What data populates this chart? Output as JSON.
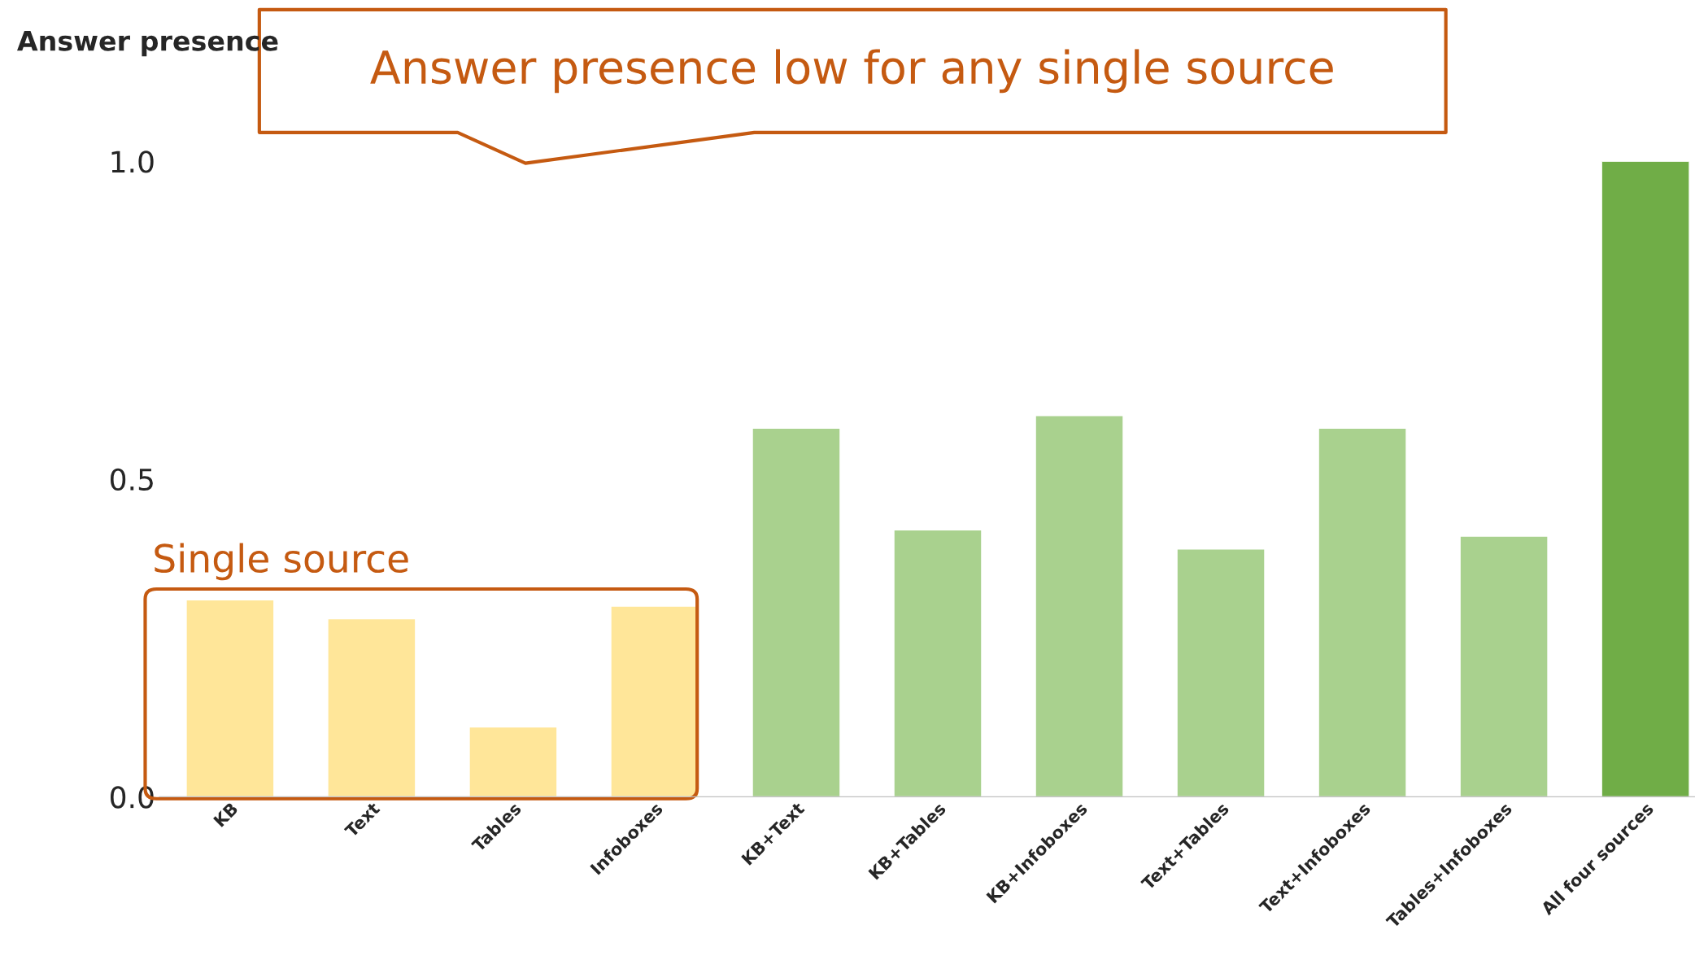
{
  "chart_data": {
    "type": "bar",
    "ylabel": "Answer presence",
    "categories": [
      "KB",
      "Text",
      "Tables",
      "Infoboxes",
      "KB+Text",
      "KB+Tables",
      "KB+Infoboxes",
      "Text+Tables",
      "Text+Infoboxes",
      "Tables+Infoboxes",
      "All four sources"
    ],
    "values": [
      0.31,
      0.28,
      0.11,
      0.3,
      0.58,
      0.42,
      0.6,
      0.39,
      0.58,
      0.41,
      1.0
    ],
    "colors": [
      "#ffe699",
      "#ffe699",
      "#ffe699",
      "#ffe699",
      "#a9d18e",
      "#a9d18e",
      "#a9d18e",
      "#a9d18e",
      "#a9d18e",
      "#a9d18e",
      "#70ad47"
    ],
    "ylim": [
      0,
      1.0
    ],
    "yticks": [
      {
        "value": 0,
        "label": "0.0"
      },
      {
        "value": 0.5,
        "label": "0.5"
      },
      {
        "value": 1,
        "label": "1.0"
      }
    ],
    "annotations": [
      "Answer presence low for any single source",
      "Single source"
    ],
    "grid": false
  }
}
